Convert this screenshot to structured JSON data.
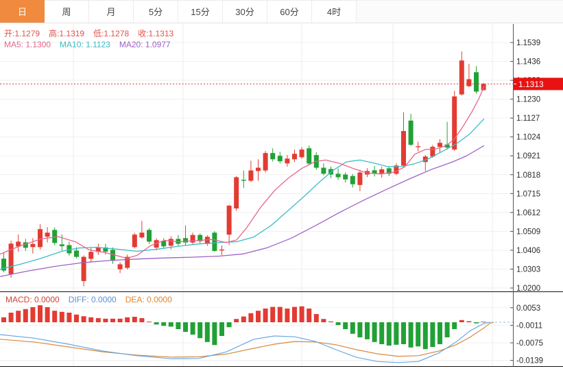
{
  "tabs": [
    {
      "id": "day",
      "label": "日",
      "active": true
    },
    {
      "id": "week",
      "label": "周",
      "active": false
    },
    {
      "id": "month",
      "label": "月",
      "active": false
    },
    {
      "id": "5min",
      "label": "5分",
      "active": false
    },
    {
      "id": "15min",
      "label": "15分",
      "active": false
    },
    {
      "id": "30min",
      "label": "30分",
      "active": false
    },
    {
      "id": "60min",
      "label": "60分",
      "active": false
    },
    {
      "id": "4hour",
      "label": "4时",
      "active": false
    }
  ],
  "ohlc_legend": {
    "color": "#e2514a",
    "items": [
      {
        "id": "open",
        "label": "开",
        "value": "1.1279"
      },
      {
        "id": "high",
        "label": "高",
        "value": "1.1319"
      },
      {
        "id": "low",
        "label": "低",
        "value": "1.1278"
      },
      {
        "id": "close",
        "label": "收",
        "value": "1.1313"
      }
    ]
  },
  "ma_legend": {
    "items": [
      {
        "id": "ma5",
        "label": "MA5:",
        "value": "1.1300",
        "color": "#e8648c"
      },
      {
        "id": "ma10",
        "label": "MA10:",
        "value": "1.1123",
        "color": "#3bbcc4"
      },
      {
        "id": "ma20",
        "label": "MA20:",
        "value": "1.0977",
        "color": "#9d62c6"
      }
    ]
  },
  "macd_legend": {
    "items": [
      {
        "id": "macd",
        "label": "MACD:",
        "value": "0.0000",
        "color": "#cb4437"
      },
      {
        "id": "diff",
        "label": "DIFF:",
        "value": "0.0000",
        "color": "#5b8fd4"
      },
      {
        "id": "dea",
        "label": "DEA:",
        "value": "0.0000",
        "color": "#e0862d"
      }
    ]
  },
  "last_price_badge": {
    "value": "1.1313",
    "bg": "#e81212",
    "text_color": "#ffffff"
  },
  "colors": {
    "up": "#e23b32",
    "down": "#21a135",
    "grid_h": "#efefef",
    "grid_v": "#ebebeb",
    "axis_line": "#555555",
    "axis_text": "#2b2b2b",
    "separator": "#111111",
    "dotted_price_line": "#e03030",
    "ma5": "#e8648c",
    "ma10": "#3bbcc4",
    "ma20": "#9d62c6",
    "diff_line": "#6aa7e0",
    "dea_line": "#d78a3d",
    "zero_dash": "#8fc0e0"
  },
  "chart_data": {
    "type": "candlestick",
    "title": "",
    "indicator": "MACD",
    "grid": true,
    "price_axis": {
      "side": "right",
      "ticks": [
        1.1539,
        1.1436,
        1.1333,
        1.123,
        1.1127,
        1.1024,
        1.0921,
        1.0818,
        1.0715,
        1.0612,
        1.0509,
        1.0406,
        1.0303,
        1.02
      ],
      "min": 1.02,
      "max": 1.1539,
      "last_price": 1.1313
    },
    "macd_axis": {
      "ticks": [
        0.0053,
        -0.0011,
        -0.0075,
        -0.0139
      ],
      "zero": 0.0
    },
    "candles_ohlc": [
      [
        1.036,
        1.0392,
        1.0285,
        1.0295
      ],
      [
        1.0276,
        1.0458,
        1.0256,
        1.0442
      ],
      [
        1.0427,
        1.0492,
        1.0398,
        1.0453
      ],
      [
        1.0449,
        1.0468,
        1.0402,
        1.0419
      ],
      [
        1.0423,
        1.0472,
        1.0388,
        1.044
      ],
      [
        1.0423,
        1.0548,
        1.041,
        1.0521
      ],
      [
        1.048,
        1.0532,
        1.0448,
        1.0502
      ],
      [
        1.0517,
        1.053,
        1.0432,
        1.0446
      ],
      [
        1.0438,
        1.0492,
        1.0404,
        1.0428
      ],
      [
        1.0434,
        1.0452,
        1.0376,
        1.0389
      ],
      [
        1.0404,
        1.0422,
        1.0362,
        1.037
      ],
      [
        1.0238,
        1.0378,
        1.0208,
        1.037
      ],
      [
        1.0359,
        1.0422,
        1.0342,
        1.0397
      ],
      [
        1.0397,
        1.0442,
        1.0381,
        1.0423
      ],
      [
        1.0421,
        1.0441,
        1.0382,
        1.0398
      ],
      [
        1.0408,
        1.0421,
        1.0332,
        1.0348
      ],
      [
        1.0302,
        1.0341,
        1.0281,
        1.0329
      ],
      [
        1.031,
        1.0382,
        1.0301,
        1.037
      ],
      [
        1.0423,
        1.0501,
        1.0415,
        1.0491
      ],
      [
        1.0476,
        1.0566,
        1.0469,
        1.0502
      ],
      [
        1.0517,
        1.0526,
        1.0441,
        1.0453
      ],
      [
        1.042,
        1.0471,
        1.0406,
        1.0461
      ],
      [
        1.0457,
        1.0471,
        1.0416,
        1.0427
      ],
      [
        1.0431,
        1.0482,
        1.0411,
        1.0468
      ],
      [
        1.0468,
        1.0489,
        1.0427,
        1.0441
      ],
      [
        1.0472,
        1.0541,
        1.0433,
        1.0448
      ],
      [
        1.0448,
        1.0502,
        1.0437,
        1.0489
      ],
      [
        1.0489,
        1.0498,
        1.0442,
        1.0455
      ],
      [
        1.044,
        1.0488,
        1.043,
        1.0479
      ],
      [
        1.0502,
        1.051,
        1.0397,
        1.0402
      ],
      [
        1.0407,
        1.0432,
        1.038,
        1.041
      ],
      [
        1.0491,
        1.0655,
        1.0434,
        1.0649
      ],
      [
        1.0634,
        1.081,
        1.062,
        1.0804
      ],
      [
        1.079,
        1.0841,
        1.0745,
        1.0785
      ],
      [
        1.0785,
        1.0894,
        1.0778,
        1.0841
      ],
      [
        1.0838,
        1.0902,
        1.0785,
        1.0856
      ],
      [
        1.0841,
        1.0947,
        1.083,
        1.0936
      ],
      [
        1.0936,
        1.0962,
        1.089,
        1.0902
      ],
      [
        1.0921,
        1.0943,
        1.088,
        1.0891
      ],
      [
        1.088,
        1.0925,
        1.0862,
        1.0906
      ],
      [
        1.0902,
        1.0955,
        1.0887,
        1.0932
      ],
      [
        1.0913,
        1.0968,
        1.0905,
        1.0955
      ],
      [
        1.0962,
        1.0977,
        1.0868,
        1.0879
      ],
      [
        1.0925,
        1.094,
        1.0845,
        1.0856
      ],
      [
        1.0856,
        1.088,
        1.0815,
        1.0823
      ],
      [
        1.0849,
        1.0862,
        1.08,
        1.0819
      ],
      [
        1.0823,
        1.0852,
        1.079,
        1.0804
      ],
      [
        1.0819,
        1.0831,
        1.0775,
        1.0792
      ],
      [
        1.0811,
        1.0822,
        1.0748,
        1.0766
      ],
      [
        1.0762,
        1.0845,
        1.0728,
        1.083
      ],
      [
        1.0819,
        1.0853,
        1.0805,
        1.0838
      ],
      [
        1.0842,
        1.0866,
        1.0808,
        1.0825
      ],
      [
        1.0825,
        1.0861,
        1.0802,
        1.0847
      ],
      [
        1.0853,
        1.0864,
        1.081,
        1.0823
      ],
      [
        1.0823,
        1.088,
        1.0815,
        1.0868
      ],
      [
        1.0868,
        1.1158,
        1.086,
        1.1056
      ],
      [
        1.1113,
        1.115,
        1.0975,
        1.0981
      ],
      [
        1.0968,
        1.0998,
        1.0945,
        1.0973
      ],
      [
        1.0887,
        1.0925,
        1.0838,
        1.0917
      ],
      [
        1.0917,
        1.098,
        1.091,
        1.097
      ],
      [
        1.097,
        1.1012,
        1.0938,
        1.0992
      ],
      [
        1.0983,
        1.1106,
        1.0955,
        1.0966
      ],
      [
        1.0955,
        1.1275,
        1.0948,
        1.1245
      ],
      [
        1.1256,
        1.149,
        1.125,
        1.1441
      ],
      [
        1.1301,
        1.1422,
        1.1295,
        1.1339
      ],
      [
        1.1377,
        1.141,
        1.126,
        1.1271
      ],
      [
        1.1279,
        1.1319,
        1.1278,
        1.1313
      ]
    ],
    "macd_hist": [
      0.0018,
      0.0035,
      0.0042,
      0.0048,
      0.0055,
      0.0062,
      0.0055,
      0.0042,
      0.0038,
      0.0035,
      0.0028,
      0.0022,
      0.0018,
      0.0015,
      0.0013,
      0.0013,
      0.0013,
      0.0018,
      0.002,
      0.0015,
      0.0002,
      -0.0008,
      -0.0013,
      -0.0016,
      -0.0025,
      -0.0035,
      -0.0045,
      -0.0058,
      -0.0072,
      -0.0083,
      -0.005,
      -0.0018,
      0.0012,
      0.0021,
      0.0033,
      0.0042,
      0.005,
      0.0056,
      0.0056,
      0.005,
      0.0056,
      0.0058,
      0.005,
      0.003,
      0.0012,
      0.0003,
      -0.001,
      -0.0025,
      -0.0042,
      -0.0055,
      -0.0062,
      -0.0072,
      -0.008,
      -0.0085,
      -0.0082,
      -0.008,
      -0.0092,
      -0.0088,
      -0.0098,
      -0.009,
      -0.008,
      -0.0055,
      -0.0025,
      0.0008,
      0.0004,
      -0.0004,
      0.0
    ],
    "ma5_points": [
      [
        0,
        1.0385
      ],
      [
        30,
        1.043
      ],
      [
        60,
        1.0468
      ],
      [
        85,
        1.048
      ],
      [
        110,
        1.0452
      ],
      [
        130,
        1.0408
      ],
      [
        155,
        1.0392
      ],
      [
        185,
        1.0362
      ],
      [
        200,
        1.0378
      ],
      [
        220,
        1.0432
      ],
      [
        240,
        1.046
      ],
      [
        260,
        1.0452
      ],
      [
        285,
        1.0458
      ],
      [
        310,
        1.0465
      ],
      [
        330,
        1.0448
      ],
      [
        345,
        1.0462
      ],
      [
        360,
        1.053
      ],
      [
        380,
        1.064
      ],
      [
        400,
        1.073
      ],
      [
        420,
        1.0798
      ],
      [
        440,
        1.0852
      ],
      [
        460,
        1.089
      ],
      [
        475,
        1.0898
      ],
      [
        495,
        1.088
      ],
      [
        515,
        1.0852
      ],
      [
        535,
        1.0828
      ],
      [
        555,
        1.0822
      ],
      [
        575,
        1.0832
      ],
      [
        590,
        1.086
      ],
      [
        605,
        1.093
      ],
      [
        620,
        1.0955
      ],
      [
        635,
        1.0958
      ],
      [
        650,
        1.0975
      ],
      [
        662,
        1.101
      ],
      [
        675,
        1.108
      ],
      [
        688,
        1.116
      ],
      [
        698,
        1.123
      ],
      [
        706,
        1.13
      ]
    ],
    "ma10_points": [
      [
        0,
        1.0302
      ],
      [
        30,
        1.033
      ],
      [
        60,
        1.0362
      ],
      [
        90,
        1.04
      ],
      [
        115,
        1.0418
      ],
      [
        140,
        1.0422
      ],
      [
        170,
        1.0412
      ],
      [
        200,
        1.04
      ],
      [
        230,
        1.0412
      ],
      [
        260,
        1.0428
      ],
      [
        290,
        1.044
      ],
      [
        320,
        1.0448
      ],
      [
        345,
        1.0452
      ],
      [
        370,
        1.0478
      ],
      [
        395,
        1.054
      ],
      [
        420,
        1.0622
      ],
      [
        445,
        1.0705
      ],
      [
        465,
        1.0775
      ],
      [
        485,
        1.084
      ],
      [
        505,
        1.0888
      ],
      [
        525,
        1.0898
      ],
      [
        545,
        1.0882
      ],
      [
        565,
        1.0862
      ],
      [
        585,
        1.0862
      ],
      [
        605,
        1.0878
      ],
      [
        625,
        1.0905
      ],
      [
        645,
        1.0945
      ],
      [
        665,
        1.0985
      ],
      [
        685,
        1.104
      ],
      [
        706,
        1.1123
      ]
    ],
    "ma20_points": [
      [
        0,
        1.0262
      ],
      [
        40,
        1.0292
      ],
      [
        80,
        1.0318
      ],
      [
        120,
        1.0338
      ],
      [
        160,
        1.035
      ],
      [
        200,
        1.0358
      ],
      [
        240,
        1.0364
      ],
      [
        280,
        1.0368
      ],
      [
        320,
        1.0374
      ],
      [
        355,
        1.0386
      ],
      [
        390,
        1.042
      ],
      [
        425,
        1.0472
      ],
      [
        460,
        1.054
      ],
      [
        495,
        1.0612
      ],
      [
        530,
        1.0678
      ],
      [
        565,
        1.074
      ],
      [
        600,
        1.08
      ],
      [
        630,
        1.0848
      ],
      [
        660,
        1.0888
      ],
      [
        680,
        1.092
      ],
      [
        706,
        1.0977
      ]
    ],
    "diff_points": [
      [
        0,
        -0.0045
      ],
      [
        50,
        -0.0058
      ],
      [
        100,
        -0.008
      ],
      [
        150,
        -0.0105
      ],
      [
        200,
        -0.0122
      ],
      [
        250,
        -0.0133
      ],
      [
        290,
        -0.0132
      ],
      [
        330,
        -0.0108
      ],
      [
        370,
        -0.0062
      ],
      [
        400,
        -0.005
      ],
      [
        430,
        -0.0053
      ],
      [
        460,
        -0.007
      ],
      [
        490,
        -0.01
      ],
      [
        520,
        -0.0128
      ],
      [
        550,
        -0.0143
      ],
      [
        580,
        -0.0147
      ],
      [
        610,
        -0.0143
      ],
      [
        640,
        -0.0112
      ],
      [
        665,
        -0.0072
      ],
      [
        685,
        -0.0032
      ],
      [
        705,
        -0.0005
      ],
      [
        715,
        0.0
      ]
    ],
    "dea_points": [
      [
        0,
        -0.0062
      ],
      [
        50,
        -0.0072
      ],
      [
        100,
        -0.009
      ],
      [
        150,
        -0.0108
      ],
      [
        200,
        -0.012
      ],
      [
        250,
        -0.0127
      ],
      [
        290,
        -0.0126
      ],
      [
        330,
        -0.0116
      ],
      [
        370,
        -0.0095
      ],
      [
        400,
        -0.008
      ],
      [
        430,
        -0.007
      ],
      [
        460,
        -0.0072
      ],
      [
        490,
        -0.0082
      ],
      [
        520,
        -0.01
      ],
      [
        550,
        -0.0115
      ],
      [
        580,
        -0.0124
      ],
      [
        610,
        -0.0122
      ],
      [
        640,
        -0.0105
      ],
      [
        665,
        -0.0082
      ],
      [
        685,
        -0.0055
      ],
      [
        705,
        -0.0022
      ],
      [
        715,
        -0.0003
      ],
      [
        720,
        0.0
      ]
    ]
  }
}
